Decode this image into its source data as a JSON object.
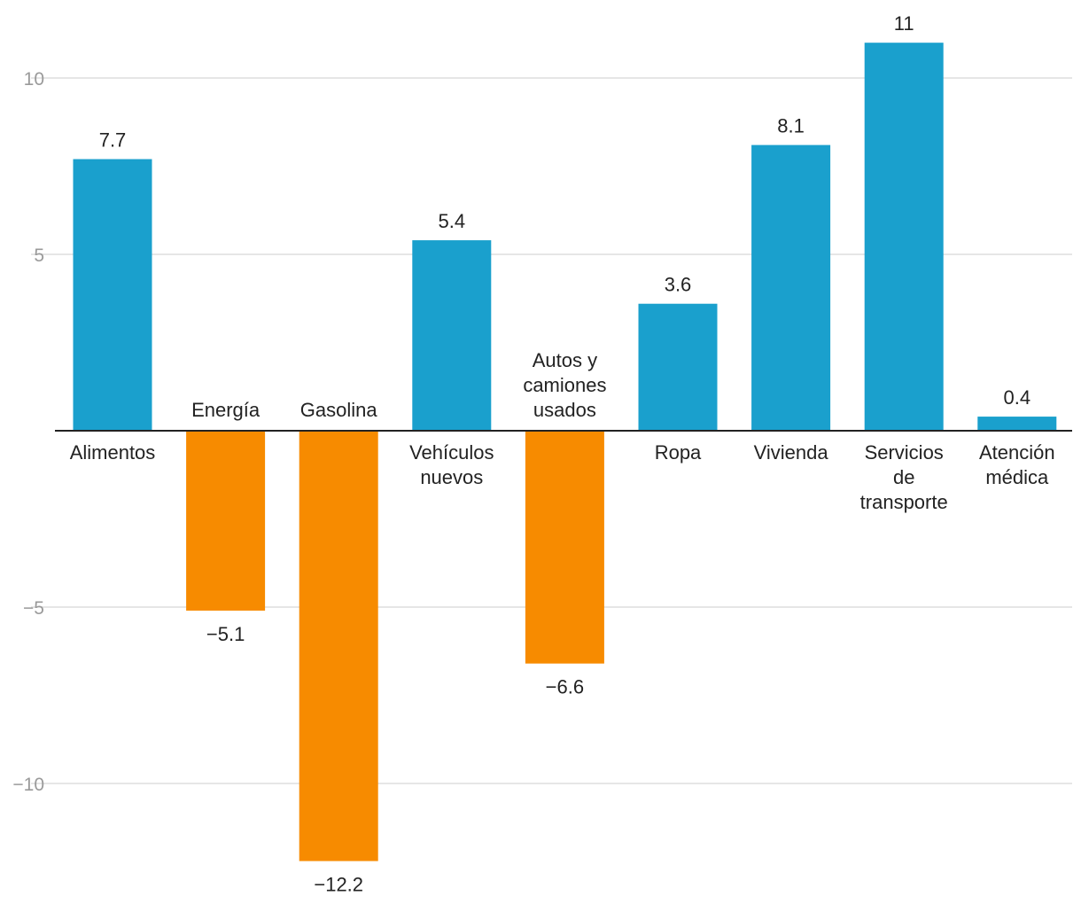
{
  "chart_data": {
    "type": "bar",
    "title": "",
    "xlabel": "",
    "ylabel": "",
    "ylim": [
      -12.5,
      11.5
    ],
    "yticks": [
      10,
      5,
      -5,
      -10
    ],
    "ytick_labels": [
      "10",
      "5",
      "−5",
      "−10"
    ],
    "grid": true,
    "legend": "none",
    "categories": [
      [
        "Alimentos"
      ],
      [
        "Energía"
      ],
      [
        "Gasolina"
      ],
      [
        "Vehículos",
        "nuevos"
      ],
      [
        "Autos y",
        "camiones",
        "usados"
      ],
      [
        "Ropa"
      ],
      [
        "Vivienda"
      ],
      [
        "Servicios",
        "de",
        "transporte"
      ],
      [
        "Atención",
        "médica"
      ]
    ],
    "values": [
      7.7,
      -5.1,
      -12.2,
      5.4,
      -6.6,
      3.6,
      8.1,
      11,
      0.4
    ],
    "value_labels": [
      "7.7",
      "−5.1",
      "−12.2",
      "5.4",
      "−6.6",
      "3.6",
      "8.1",
      "11",
      "0.4"
    ],
    "colors": {
      "positive": "#1aa0cd",
      "negative": "#f78b00"
    }
  }
}
